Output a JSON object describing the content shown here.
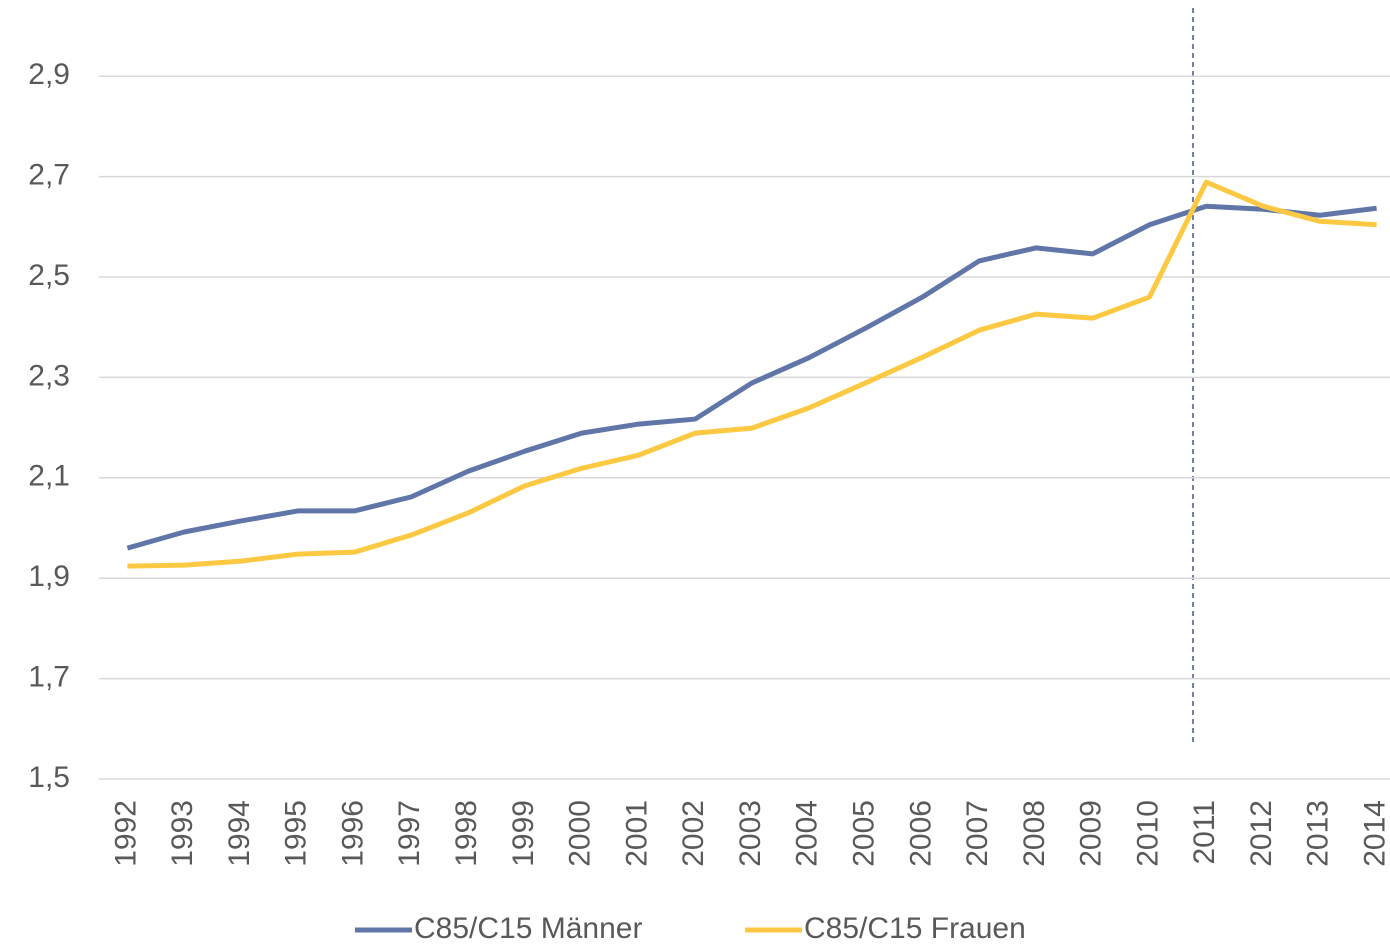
{
  "chart_data": {
    "type": "line",
    "categories": [
      "1992",
      "1993",
      "1994",
      "1995",
      "1996",
      "1997",
      "1998",
      "1999",
      "2000",
      "2001",
      "2002",
      "2003",
      "2004",
      "2005",
      "2006",
      "2007",
      "2008",
      "2009",
      "2010",
      "2011",
      "2012",
      "2013",
      "2014"
    ],
    "series": [
      {
        "name": "C85/C15 Männer",
        "color": "#6176a8",
        "values": [
          1.96,
          1.992,
          2.014,
          2.034,
          2.034,
          2.062,
          2.113,
          2.153,
          2.189,
          2.207,
          2.217,
          2.289,
          2.339,
          2.398,
          2.46,
          2.532,
          2.558,
          2.546,
          2.604,
          2.641,
          2.635,
          2.623,
          2.637
        ]
      },
      {
        "name": "C85/C15 Frauen",
        "color": "#fdc842",
        "values": [
          1.924,
          1.926,
          1.934,
          1.948,
          1.952,
          1.986,
          2.03,
          2.084,
          2.119,
          2.145,
          2.189,
          2.199,
          2.239,
          2.289,
          2.34,
          2.394,
          2.426,
          2.418,
          2.46,
          2.689,
          2.641,
          2.611,
          2.604
        ]
      }
    ],
    "ylim": [
      1.5,
      3.0
    ],
    "yticks": [
      {
        "value": 1.5,
        "label": "1,5"
      },
      {
        "value": 1.7,
        "label": "1,7"
      },
      {
        "value": 1.9,
        "label": "1,9"
      },
      {
        "value": 2.1,
        "label": "2,1"
      },
      {
        "value": 2.3,
        "label": "2,3"
      },
      {
        "value": 2.5,
        "label": "2,5"
      },
      {
        "value": 2.7,
        "label": "2,7"
      },
      {
        "value": 2.9,
        "label": "2,9"
      }
    ],
    "grid": true
  }
}
